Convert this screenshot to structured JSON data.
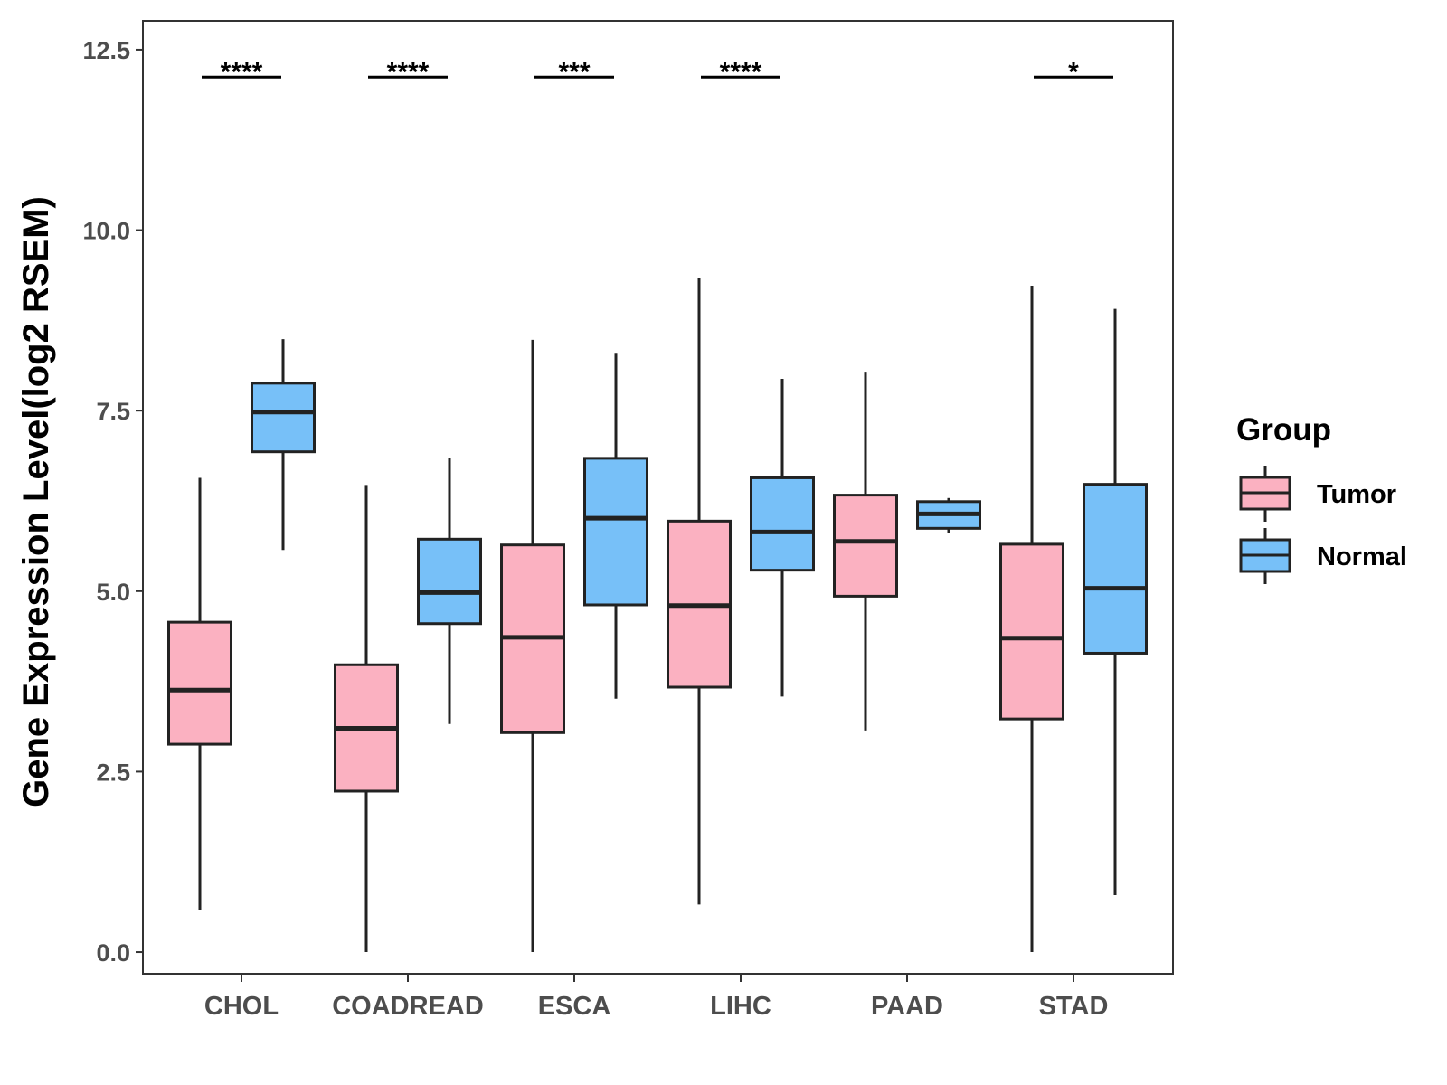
{
  "chart_data": {
    "type": "boxplot",
    "ylabel": "Gene Expression Level(log2 RSEM)",
    "xlabel": "",
    "ylim": [
      -0.3,
      12.9
    ],
    "yticks": [
      0.0,
      2.5,
      5.0,
      7.5,
      10.0,
      12.5
    ],
    "ytick_labels": [
      "0.0",
      "2.5",
      "5.0",
      "7.5",
      "10.0",
      "12.5"
    ],
    "categories": [
      "CHOL",
      "COADREAD",
      "ESCA",
      "LIHC",
      "PAAD",
      "STAD"
    ],
    "legend": {
      "title": "Group",
      "position": "right",
      "entries": [
        {
          "name": "Tumor",
          "color": "#FBB1C1"
        },
        {
          "name": "Normal",
          "color": "#77C0F8"
        }
      ]
    },
    "series": [
      {
        "name": "Tumor",
        "color": "#FBB1C1",
        "boxes": [
          {
            "category": "CHOL",
            "min": 0.58,
            "q1": 2.88,
            "median": 3.63,
            "q3": 4.57,
            "max": 6.57
          },
          {
            "category": "COADREAD",
            "min": 0.0,
            "q1": 2.23,
            "median": 3.1,
            "q3": 3.98,
            "max": 6.47
          },
          {
            "category": "ESCA",
            "min": 0.0,
            "q1": 3.04,
            "median": 4.36,
            "q3": 5.64,
            "max": 8.48
          },
          {
            "category": "LIHC",
            "min": 0.66,
            "q1": 3.67,
            "median": 4.8,
            "q3": 5.97,
            "max": 9.34
          },
          {
            "category": "PAAD",
            "min": 3.07,
            "q1": 4.93,
            "median": 5.69,
            "q3": 6.33,
            "max": 8.04
          },
          {
            "category": "STAD",
            "min": 0.0,
            "q1": 3.23,
            "median": 4.35,
            "q3": 5.65,
            "max": 9.23
          }
        ]
      },
      {
        "name": "Normal",
        "color": "#77C0F8",
        "boxes": [
          {
            "category": "CHOL",
            "min": 5.57,
            "q1": 6.93,
            "median": 7.48,
            "q3": 7.88,
            "max": 8.49
          },
          {
            "category": "COADREAD",
            "min": 3.16,
            "q1": 4.55,
            "median": 4.98,
            "q3": 5.72,
            "max": 6.85
          },
          {
            "category": "ESCA",
            "min": 3.51,
            "q1": 4.81,
            "median": 6.01,
            "q3": 6.84,
            "max": 8.3
          },
          {
            "category": "LIHC",
            "min": 3.54,
            "q1": 5.29,
            "median": 5.82,
            "q3": 6.57,
            "max": 7.94
          },
          {
            "category": "PAAD",
            "min": 5.8,
            "q1": 5.87,
            "median": 6.07,
            "q3": 6.24,
            "max": 6.29
          },
          {
            "category": "STAD",
            "min": 0.79,
            "q1": 4.14,
            "median": 5.04,
            "q3": 6.48,
            "max": 8.91
          }
        ]
      }
    ],
    "significance": [
      {
        "category": "CHOL",
        "label": "****",
        "y": 12.12
      },
      {
        "category": "COADREAD",
        "label": "****",
        "y": 12.12
      },
      {
        "category": "ESCA",
        "label": "***",
        "y": 12.12
      },
      {
        "category": "LIHC",
        "label": "****",
        "y": 12.12
      },
      {
        "category": "STAD",
        "label": "*",
        "y": 12.12
      }
    ]
  }
}
